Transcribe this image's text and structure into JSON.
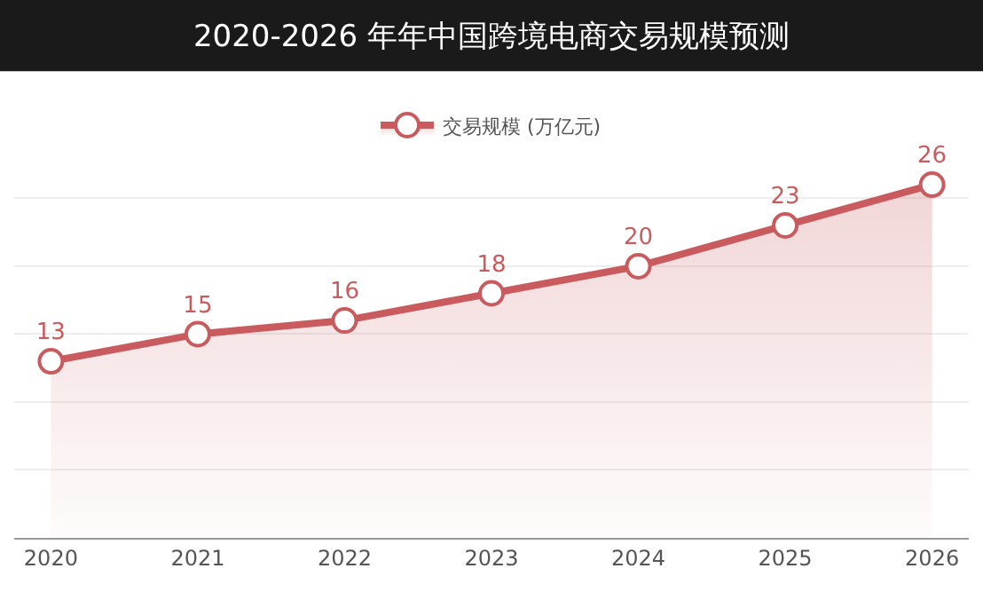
{
  "chart_data": {
    "type": "area",
    "title": "2020-2026 年年中国跨境电商交易规模预测",
    "categories": [
      "2020",
      "2021",
      "2022",
      "2023",
      "2024",
      "2025",
      "2026"
    ],
    "series": [
      {
        "name": "交易规模 (万亿元)",
        "color": "#c95a5e",
        "values": [
          13,
          15,
          16,
          18,
          20,
          23,
          26
        ]
      }
    ],
    "data_labels": true,
    "marker": "circle",
    "legend": "top",
    "grid": "y"
  }
}
